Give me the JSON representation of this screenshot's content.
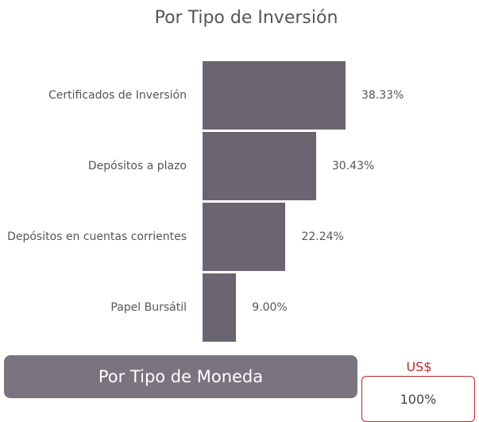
{
  "chart_data": {
    "type": "bar",
    "orientation": "horizontal",
    "title": "Por Tipo de Inversión",
    "categories": [
      "Certificados de Inversión",
      "Depósitos a plazo",
      "Depósitos en cuentas corrientes",
      "Papel Bursátil"
    ],
    "values": [
      38.33,
      30.43,
      22.24,
      9.0
    ],
    "value_labels": [
      "38.33%",
      "30.43%",
      "22.24%",
      "9.00%"
    ],
    "color": "#6b6571"
  },
  "tab_button": {
    "label": "Por Tipo de Moneda"
  },
  "currency_panel": {
    "currency": "US$",
    "value": "100%"
  }
}
